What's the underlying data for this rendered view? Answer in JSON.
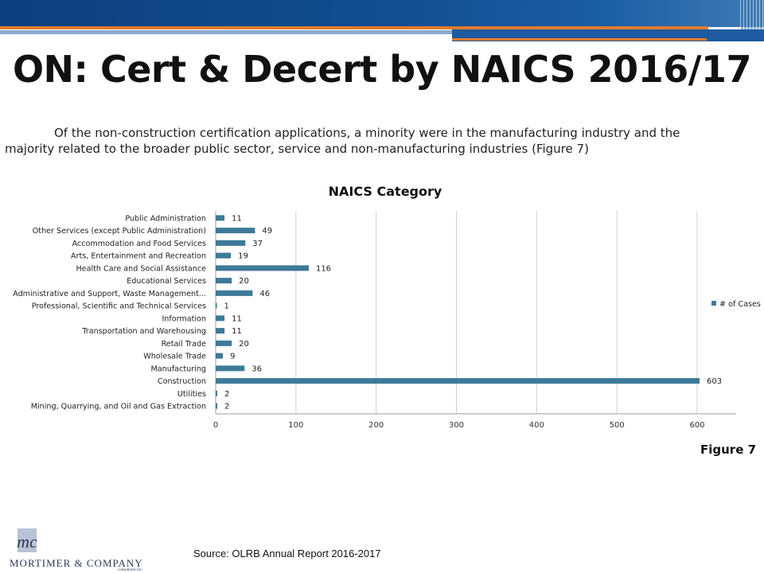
{
  "slide": {
    "title": "ON: Cert & Decert by NAICS 2016/17",
    "description_line1": "Of the non-construction certification applications, a minority were in the manufacturing industry and the",
    "description_line2": "majority related to the broader public sector, service and non-manufacturing industries (Figure 7)",
    "figure_label": "Figure 7",
    "source": "Source: OLRB Annual Report 2016-2017",
    "logo": {
      "monogram": "mc",
      "company": "MORTIMER & COMPANY",
      "subtitle": "consultants inc."
    }
  },
  "colors": {
    "bar": "#3d7a98",
    "title_band": "#124f92",
    "accent_orange": "#e07b2e"
  },
  "chart_data": {
    "type": "bar",
    "orientation": "horizontal",
    "title": "NAICS Category",
    "categories": [
      "Public Administration",
      "Other Services (except Public Administration)",
      "Accommodation and Food Services",
      "Arts, Entertainment and Recreation",
      "Health Care and Social Assistance",
      "Educational Services",
      "Administrative and Support, Waste Management...",
      "Professional, Scientific and Technical Services",
      "Information",
      "Transportation and Warehousing",
      "Retail Trade",
      "Wholesale Trade",
      "Manufacturing",
      "Construction",
      "Utilities",
      "Mining, Quarrying, and Oil and Gas Extraction"
    ],
    "series": [
      {
        "name": "# of Cases",
        "values": [
          11,
          49,
          37,
          19,
          116,
          20,
          46,
          1,
          11,
          11,
          20,
          9,
          36,
          603,
          2,
          2
        ]
      }
    ],
    "xlim": [
      0,
      650
    ],
    "xticks": [
      0,
      100,
      200,
      300,
      400,
      500,
      600
    ],
    "grid": "vertical",
    "legend_position": "right",
    "data_labels": true
  }
}
